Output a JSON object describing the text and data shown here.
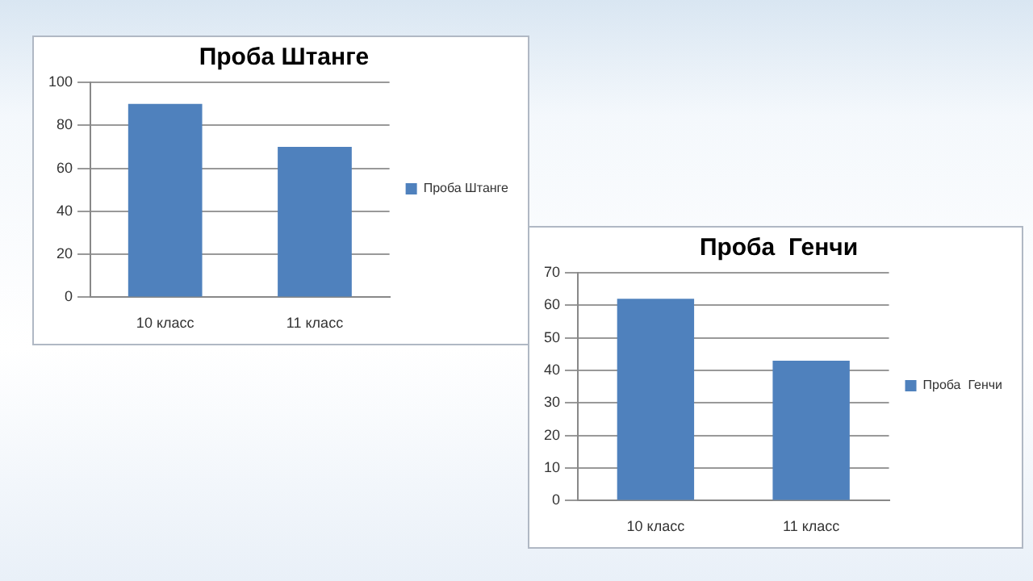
{
  "chart_data": [
    {
      "type": "bar",
      "title": "Проба Штанге",
      "categories": [
        "10 класс",
        "11 класс"
      ],
      "series": [
        {
          "name": "Проба Штанге",
          "color": "#4f81bd",
          "values": [
            90,
            70
          ]
        }
      ],
      "ylim": [
        0,
        100
      ],
      "yticks": [
        0,
        20,
        40,
        60,
        80,
        100
      ],
      "grid": "y",
      "legend": "right"
    },
    {
      "type": "bar",
      "title": "Проба  Генчи",
      "categories": [
        "10 класс",
        "11 класс"
      ],
      "series": [
        {
          "name": "Проба  Генчи",
          "color": "#4f81bd",
          "values": [
            62,
            43
          ]
        }
      ],
      "ylim": [
        0,
        70
      ],
      "yticks": [
        0,
        10,
        20,
        30,
        40,
        50,
        60,
        70
      ],
      "grid": "y",
      "legend": "right"
    }
  ]
}
